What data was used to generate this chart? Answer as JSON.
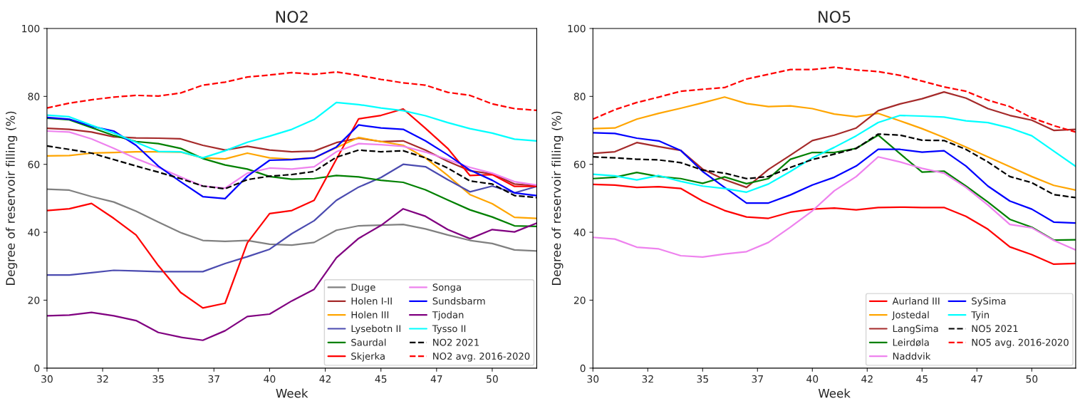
{
  "chart_data": [
    {
      "type": "line",
      "title": "NO2",
      "xlabel": "Week",
      "ylabel": "Degree of reservoir filling (%)",
      "x": [
        30,
        31,
        32,
        33,
        34,
        35,
        36,
        37,
        38,
        39,
        40,
        41,
        42,
        43,
        44,
        45,
        46,
        47,
        48,
        49,
        50,
        51,
        52
      ],
      "xlim": [
        30,
        52
      ],
      "xticks": [
        30,
        {
          "value": 32.5,
          "label": "32"
        },
        35,
        {
          "value": 37.5,
          "label": "37"
        },
        40,
        {
          "value": 42.5,
          "label": "42"
        },
        45,
        {
          "value": 47.5,
          "label": "47"
        },
        50
      ],
      "ylim": [
        0,
        100
      ],
      "yticks": [
        0,
        20,
        40,
        60,
        80,
        100
      ],
      "grid": false,
      "legend": "bottom right",
      "series": [
        {
          "name": "Duge",
          "color": "#808080",
          "values": [
            52.7,
            52.4,
            50.5,
            48.9,
            46.2,
            43,
            39.9,
            37.6,
            37.3,
            37.6,
            36.5,
            36.2,
            37,
            40.6,
            41.9,
            42.1,
            42.3,
            41,
            39.2,
            37.6,
            36.7,
            34.8,
            34.5
          ]
        },
        {
          "name": "Holen I-II",
          "color": "#a52a2a",
          "values": [
            70.6,
            70.3,
            69.5,
            68.1,
            67.8,
            67.7,
            67.5,
            65.6,
            64.2,
            65.3,
            64.2,
            63.7,
            63.9,
            66.4,
            67.7,
            66.7,
            66.9,
            64.2,
            60.9,
            58.1,
            57.2,
            54.2,
            53.7
          ]
        },
        {
          "name": "Holen III",
          "color": "#ffa500",
          "values": [
            62.5,
            62.6,
            63.3,
            63.5,
            63.7,
            63.7,
            63.6,
            61.9,
            61.6,
            63.3,
            61.9,
            61.5,
            61.9,
            64.9,
            67.9,
            66.7,
            65.6,
            61.9,
            56.7,
            51.1,
            48.4,
            44.4,
            44.1
          ]
        },
        {
          "name": "Lysebotn II",
          "color": "#4b4bb0",
          "values": [
            27.4,
            27.4,
            28.1,
            28.8,
            28.6,
            28.4,
            28.4,
            28.4,
            30.8,
            32.8,
            35,
            39.6,
            43.4,
            49.4,
            53.3,
            56.1,
            60,
            59.3,
            55.5,
            51.9,
            53.6,
            51.6,
            53.5
          ]
        },
        {
          "name": "Saurdal",
          "color": "#008000",
          "values": [
            73.6,
            73.1,
            70.8,
            68.5,
            66.7,
            66.1,
            64.7,
            61.7,
            59.8,
            58.6,
            56.4,
            55.6,
            55.8,
            56.7,
            56.3,
            55.3,
            54.7,
            52.5,
            49.5,
            46.6,
            44.5,
            41.9,
            41.7
          ]
        },
        {
          "name": "Skjerka",
          "color": "#ff0000",
          "values": [
            46.4,
            46.9,
            48.5,
            44.1,
            39.2,
            30.2,
            22.3,
            17.7,
            19.1,
            36.9,
            45.5,
            46.4,
            49.4,
            61.5,
            73.4,
            74.4,
            76.3,
            70.6,
            64.7,
            56.7,
            57,
            53.5,
            53.5
          ]
        },
        {
          "name": "Songa",
          "color": "#ee82ee",
          "values": [
            69.8,
            69.5,
            67.5,
            64.7,
            61.7,
            59.1,
            56.3,
            53.6,
            53,
            57.4,
            58.9,
            58.6,
            59.3,
            63.7,
            66.1,
            65.8,
            65.3,
            63.6,
            61.4,
            59.1,
            57.4,
            54.9,
            53.9
          ]
        },
        {
          "name": "Sundsbarm",
          "color": "#0000ff",
          "values": [
            73.8,
            73.3,
            71.2,
            69.8,
            65.6,
            59.5,
            54.9,
            50.5,
            49.9,
            56.5,
            61.2,
            61.4,
            61.9,
            65.1,
            71.6,
            70.7,
            70.3,
            66.9,
            62.8,
            58.3,
            55.3,
            51.6,
            50.8
          ]
        },
        {
          "name": "Tjodan",
          "color": "#800080",
          "values": [
            15.4,
            15.6,
            16.4,
            15.4,
            14,
            10.5,
            9.1,
            8.2,
            11,
            15.2,
            15.9,
            19.8,
            23.2,
            32.5,
            38.2,
            42,
            46.9,
            44.7,
            40.8,
            38.1,
            40.8,
            40.1,
            42.7
          ]
        },
        {
          "name": "Tysso II",
          "color": "#00ffff",
          "values": [
            74.5,
            74,
            71.5,
            69.2,
            66.5,
            63.8,
            63.7,
            61.9,
            64,
            66.5,
            68.3,
            70.3,
            73.2,
            78.2,
            77.6,
            76.6,
            75.8,
            74.3,
            72.3,
            70.5,
            69.2,
            67.4,
            66.9
          ]
        },
        {
          "name": "NO2 2021",
          "color": "#000000",
          "line_style": "dashed",
          "values": [
            65.4,
            64.4,
            63.3,
            61.4,
            59.5,
            57.7,
            55.8,
            53.6,
            52.8,
            55.5,
            56.5,
            57,
            57.9,
            62.1,
            64.2,
            63.7,
            64,
            61.9,
            58.9,
            55.1,
            54.2,
            50.8,
            50.2
          ]
        },
        {
          "name": "NO2 avg. 2016-2020",
          "color": "#ff0000",
          "line_style": "dashed",
          "values": [
            76.6,
            78,
            79,
            79.8,
            80.3,
            80.1,
            81,
            83.3,
            84.2,
            85.7,
            86.3,
            87,
            86.5,
            87.2,
            86.2,
            85,
            84,
            83.3,
            81.2,
            80.3,
            77.8,
            76.4,
            75.9
          ]
        }
      ]
    },
    {
      "type": "line",
      "title": "NO5",
      "xlabel": "Week",
      "ylabel": "Degree of reservoir filling (%)",
      "x": [
        30,
        31,
        32,
        33,
        34,
        35,
        36,
        37,
        38,
        39,
        40,
        41,
        42,
        43,
        44,
        45,
        46,
        47,
        48,
        49,
        50,
        51,
        52
      ],
      "xlim": [
        30,
        52
      ],
      "xticks": [
        30,
        {
          "value": 32.5,
          "label": "32"
        },
        35,
        {
          "value": 37.5,
          "label": "37"
        },
        40,
        {
          "value": 42.5,
          "label": "42"
        },
        45,
        {
          "value": 47.5,
          "label": "47"
        },
        50
      ],
      "ylim": [
        0,
        100
      ],
      "yticks": [
        0,
        20,
        40,
        60,
        80,
        100
      ],
      "grid": false,
      "legend": "bottom right",
      "series": [
        {
          "name": "Aurland III",
          "color": "#ff0000",
          "values": [
            54.1,
            53.9,
            53.2,
            53.4,
            52.9,
            49.2,
            46.4,
            44.5,
            44.1,
            45.9,
            46.8,
            47.1,
            46.6,
            47.3,
            47.4,
            47.3,
            47.3,
            44.7,
            40.9,
            35.7,
            33.4,
            30.6,
            30.8
          ]
        },
        {
          "name": "Jostedal",
          "color": "#ffa500",
          "values": [
            70.5,
            70.7,
            73.3,
            75,
            76.5,
            78.1,
            79.8,
            77.9,
            77,
            77.2,
            76.4,
            74.8,
            74,
            75,
            72.8,
            70.5,
            67.9,
            65.1,
            62.2,
            59.3,
            56.4,
            53.8,
            52.4
          ]
        },
        {
          "name": "LangSima",
          "color": "#a52a2a",
          "values": [
            63.2,
            63.7,
            66.4,
            65.2,
            64.1,
            58.6,
            55.5,
            53.2,
            58.5,
            62.7,
            67,
            68.6,
            70.7,
            75.8,
            77.8,
            79.3,
            81.3,
            79.5,
            76.4,
            74.4,
            73,
            70,
            70.3
          ]
        },
        {
          "name": "Leirdøla",
          "color": "#008000",
          "values": [
            55.8,
            56.2,
            57.6,
            56.4,
            55.8,
            54.4,
            56.3,
            54.3,
            55.8,
            61.5,
            63.5,
            63.5,
            64.7,
            68.6,
            63.1,
            57.7,
            58,
            53.6,
            48.9,
            43.8,
            41.5,
            37.7,
            37.8
          ]
        },
        {
          "name": "Naddvik",
          "color": "#ee82ee",
          "values": [
            38.5,
            38,
            35.6,
            35.1,
            33.1,
            32.7,
            33.6,
            34.3,
            37,
            41.5,
            46.3,
            52.2,
            56.4,
            62.2,
            60.7,
            58.8,
            57.4,
            53.2,
            48,
            42.3,
            41.3,
            37.6,
            34.8
          ]
        },
        {
          "name": "SySima",
          "color": "#0000ff",
          "values": [
            69.3,
            69.1,
            67.7,
            66.9,
            64.1,
            57.9,
            53.2,
            48.6,
            48.6,
            51,
            53.9,
            56.2,
            59.5,
            64.4,
            64.4,
            63.6,
            64,
            59.5,
            53.6,
            49.2,
            46.8,
            43,
            42.7
          ]
        },
        {
          "name": "Tyin",
          "color": "#00ffff",
          "values": [
            57.1,
            56.6,
            55.4,
            56.7,
            55,
            53.6,
            52.9,
            51.8,
            54.2,
            57.9,
            61.9,
            65,
            68.4,
            72.3,
            74.4,
            74.2,
            73.9,
            72.8,
            72.3,
            70.7,
            68.4,
            63.9,
            59.4
          ]
        },
        {
          "name": "NO5 2021",
          "color": "#000000",
          "line_style": "dashed",
          "values": [
            62.2,
            61.9,
            61.5,
            61.3,
            60.5,
            58.3,
            57.4,
            55.8,
            56.4,
            59.1,
            61.4,
            63,
            64.7,
            68.9,
            68.6,
            67.1,
            67,
            64.4,
            60.7,
            56.4,
            54.6,
            51.1,
            50.2
          ]
        },
        {
          "name": "NO5 avg. 2016-2020",
          "color": "#ff0000",
          "line_style": "dashed",
          "values": [
            73.3,
            76.1,
            78.2,
            79.8,
            81.5,
            82.1,
            82.6,
            85.1,
            86.5,
            87.9,
            87.9,
            88.6,
            87.8,
            87.3,
            86.2,
            84.5,
            82.8,
            81.5,
            78.9,
            77,
            73.7,
            71.4,
            69.5
          ]
        }
      ]
    }
  ]
}
